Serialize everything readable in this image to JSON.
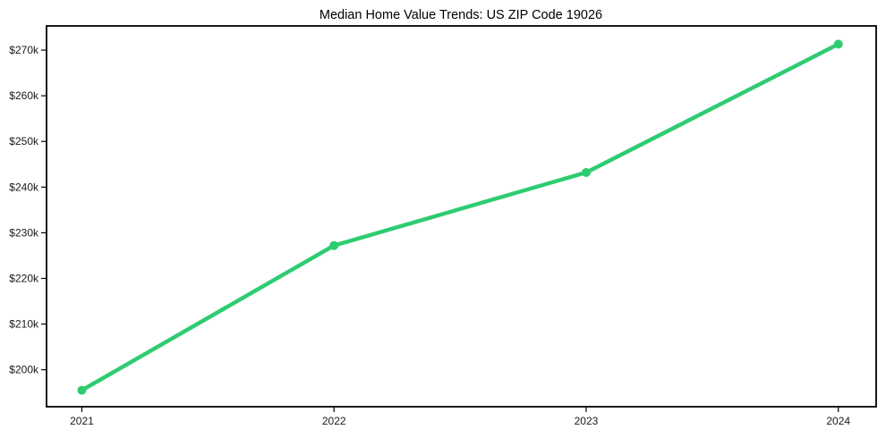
{
  "title": "Median Home Value Trends: US ZIP Code 19026",
  "colors": {
    "line": "#2ecc71",
    "marker": "#2ecc71",
    "spine": "#000000",
    "tick_text": "#1a1a1a",
    "background": "#ffffff"
  },
  "chart_data": {
    "type": "line",
    "title": "Median Home Value Trends: US ZIP Code 19026",
    "x": [
      2021,
      2022,
      2023,
      2024
    ],
    "x_tick_labels": [
      "2021",
      "2022",
      "2023",
      "2024"
    ],
    "values": [
      195500,
      227200,
      243200,
      271300
    ],
    "y_ticks": [
      200000,
      210000,
      220000,
      230000,
      240000,
      250000,
      260000,
      270000
    ],
    "y_tick_labels": [
      "$200k",
      "$210k",
      "$220k",
      "$230k",
      "$240k",
      "$250k",
      "$260k",
      "$270k"
    ],
    "xlabel": "",
    "ylabel": "",
    "xlim": [
      2020.86,
      2024.15
    ],
    "ylim": [
      191900,
      275300
    ],
    "grid": false,
    "legend": false,
    "marker": "circle",
    "line_width": 4.5,
    "marker_radius": 5
  }
}
